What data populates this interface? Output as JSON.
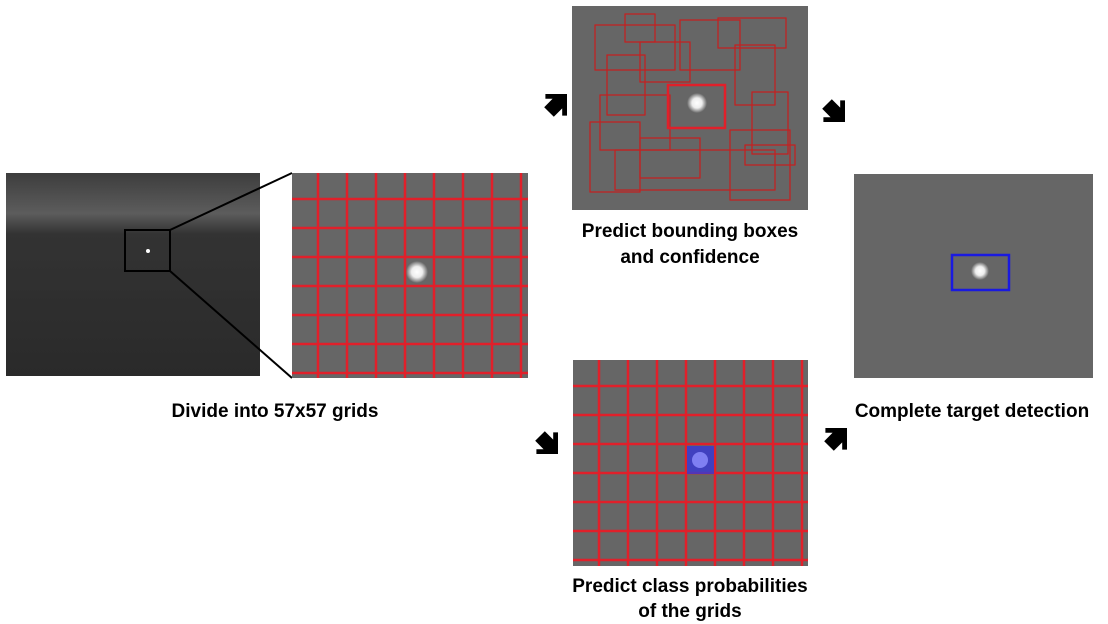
{
  "captions": {
    "divide": "Divide into 57x57 grids",
    "boxes": [
      "Predict bounding boxes",
      "and confidence"
    ],
    "probabilities": [
      "Predict class probabilities",
      "of the grids"
    ],
    "detection": "Complete target detection"
  }
}
